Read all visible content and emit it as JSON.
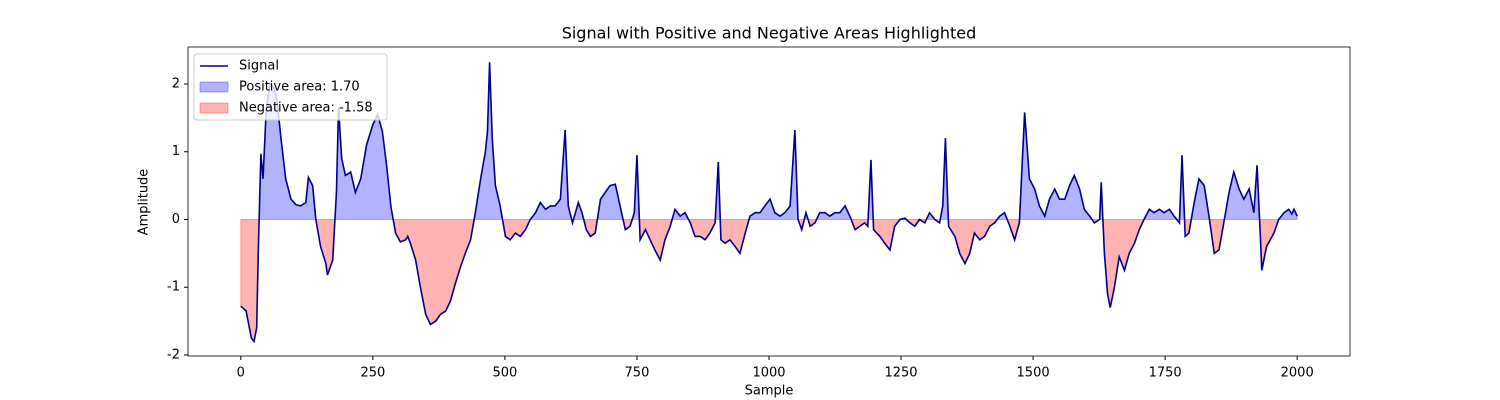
{
  "chart_data": {
    "type": "line",
    "title": "Signal with Positive and Negative Areas Highlighted",
    "xlabel": "Sample",
    "ylabel": "Amplitude",
    "x": [
      0,
      10,
      15,
      20,
      25,
      30,
      33,
      36,
      38,
      42,
      48,
      55,
      62,
      68,
      76,
      85,
      95,
      104,
      113,
      123,
      128,
      136,
      142,
      151,
      161,
      164,
      174,
      181,
      185,
      191,
      198,
      208,
      217,
      227,
      238,
      250,
      259,
      268,
      276,
      284,
      293,
      302,
      312,
      316,
      321,
      331,
      340,
      350,
      359,
      369,
      378,
      388,
      397,
      406,
      416,
      425,
      435,
      444,
      454,
      463,
      467,
      471,
      476,
      482,
      491,
      501,
      510,
      520,
      529,
      539,
      548,
      558,
      567,
      577,
      586,
      595,
      605,
      614,
      620,
      628,
      639,
      646,
      654,
      662,
      671,
      681,
      690,
      699,
      709,
      718,
      728,
      737,
      745,
      750,
      756,
      766,
      775,
      784,
      794,
      803,
      813,
      822,
      832,
      841,
      851,
      860,
      870,
      879,
      888,
      898,
      904,
      909,
      917,
      926,
      936,
      945,
      955,
      964,
      974,
      983,
      992,
      1002,
      1011,
      1021,
      1030,
      1040,
      1049,
      1055,
      1062,
      1070,
      1078,
      1087,
      1096,
      1106,
      1115,
      1125,
      1134,
      1144,
      1153,
      1163,
      1172,
      1181,
      1187,
      1193,
      1198,
      1210,
      1219,
      1229,
      1238,
      1248,
      1257,
      1267,
      1276,
      1285,
      1295,
      1304,
      1314,
      1323,
      1329,
      1334,
      1340,
      1352,
      1361,
      1371,
      1380,
      1389,
      1399,
      1408,
      1418,
      1427,
      1437,
      1446,
      1456,
      1465,
      1474,
      1484,
      1493,
      1503,
      1512,
      1522,
      1531,
      1541,
      1550,
      1560,
      1569,
      1578,
      1588,
      1597,
      1607,
      1616,
      1626,
      1629,
      1635,
      1641,
      1646,
      1654,
      1663,
      1673,
      1682,
      1692,
      1701,
      1710,
      1720,
      1729,
      1739,
      1748,
      1758,
      1767,
      1777,
      1782,
      1788,
      1795,
      1805,
      1814,
      1824,
      1833,
      1843,
      1852,
      1861,
      1871,
      1880,
      1890,
      1899,
      1909,
      1918,
      1924,
      1930,
      1933,
      1942,
      1956,
      1965,
      1975,
      1984,
      1990,
      1994,
      2000
    ],
    "series": [
      {
        "name": "Signal",
        "color": "#00008b",
        "values": [
          -1.28,
          -1.35,
          -1.55,
          -1.75,
          -1.8,
          -1.6,
          -0.5,
          0.4,
          0.97,
          0.6,
          1.6,
          2.0,
          1.95,
          1.8,
          1.2,
          0.6,
          0.3,
          0.22,
          0.2,
          0.25,
          0.62,
          0.5,
          0,
          -0.4,
          -0.65,
          -0.82,
          -0.6,
          0.4,
          1.65,
          0.9,
          0.65,
          0.7,
          0.4,
          0.6,
          1.1,
          1.4,
          1.55,
          1.3,
          0.8,
          0.2,
          -0.2,
          -0.33,
          -0.3,
          -0.25,
          -0.35,
          -0.6,
          -1.0,
          -1.4,
          -1.55,
          -1.5,
          -1.4,
          -1.35,
          -1.2,
          -0.95,
          -0.7,
          -0.5,
          -0.3,
          0.1,
          0.6,
          1.0,
          1.3,
          2.32,
          1.2,
          0.5,
          0.2,
          -0.25,
          -0.3,
          -0.2,
          -0.25,
          -0.15,
          0,
          0.1,
          0.25,
          0.15,
          0.2,
          0.2,
          0.3,
          1.32,
          0.2,
          -0.05,
          0.25,
          0.1,
          -0.15,
          -0.25,
          -0.2,
          0.3,
          0.4,
          0.5,
          0.52,
          0.2,
          -0.15,
          -0.1,
          0.1,
          0.95,
          -0.3,
          -0.15,
          -0.3,
          -0.45,
          -0.6,
          -0.3,
          -0.1,
          0.15,
          0.05,
          0.1,
          -0.05,
          -0.25,
          -0.25,
          -0.3,
          -0.2,
          -0.05,
          0.85,
          -0.3,
          -0.35,
          -0.3,
          -0.4,
          -0.5,
          -0.2,
          0.05,
          0.1,
          0.1,
          0.2,
          0.3,
          0.1,
          0.05,
          0.1,
          0.2,
          1.32,
          0,
          -0.15,
          0.1,
          -0.1,
          -0.05,
          0.1,
          0.1,
          0.05,
          0.1,
          0.1,
          0.2,
          0.05,
          -0.15,
          -0.1,
          -0.05,
          -0.1,
          0.88,
          -0.15,
          -0.25,
          -0.35,
          -0.45,
          -0.1,
          0,
          0.02,
          -0.05,
          -0.1,
          0,
          -0.05,
          0.1,
          0,
          -0.05,
          0.2,
          1.2,
          -0.1,
          -0.25,
          -0.5,
          -0.65,
          -0.5,
          -0.2,
          -0.3,
          -0.25,
          -0.1,
          -0.05,
          0.05,
          0.1,
          -0.1,
          -0.3,
          -0.05,
          1.58,
          0.6,
          0.45,
          0.2,
          0.05,
          0.3,
          0.45,
          0.3,
          0.3,
          0.5,
          0.65,
          0.45,
          0.15,
          0.05,
          -0.05,
          0,
          0.55,
          -0.5,
          -1.1,
          -1.3,
          -1.0,
          -0.55,
          -0.75,
          -0.5,
          -0.35,
          -0.15,
          0,
          0.15,
          0.1,
          0.15,
          0.1,
          0.15,
          0.05,
          -0.05,
          0.95,
          -0.25,
          -0.2,
          0.25,
          0.6,
          0.5,
          0.05,
          -0.5,
          -0.45,
          -0.05,
          0.4,
          0.7,
          0.45,
          0.3,
          0.45,
          0.1,
          0.8,
          -0.2,
          -0.75,
          -0.4,
          -0.2,
          0,
          0.1,
          0.15,
          0.08,
          0.15,
          0.05
        ]
      }
    ],
    "areas": [
      {
        "name": "Positive area: 1.70",
        "color": "#0000ff",
        "side": "positive"
      },
      {
        "name": "Negative area: -1.58",
        "color": "#ff0000",
        "side": "negative"
      }
    ],
    "xlim": [
      -100,
      2100
    ],
    "ylim": [
      -2.015,
      2.546
    ],
    "xticks": [
      0,
      250,
      500,
      750,
      1000,
      1250,
      1500,
      1750,
      2000
    ],
    "yticks": [
      -2,
      -1,
      0,
      1,
      2
    ],
    "legend": "upper left"
  }
}
